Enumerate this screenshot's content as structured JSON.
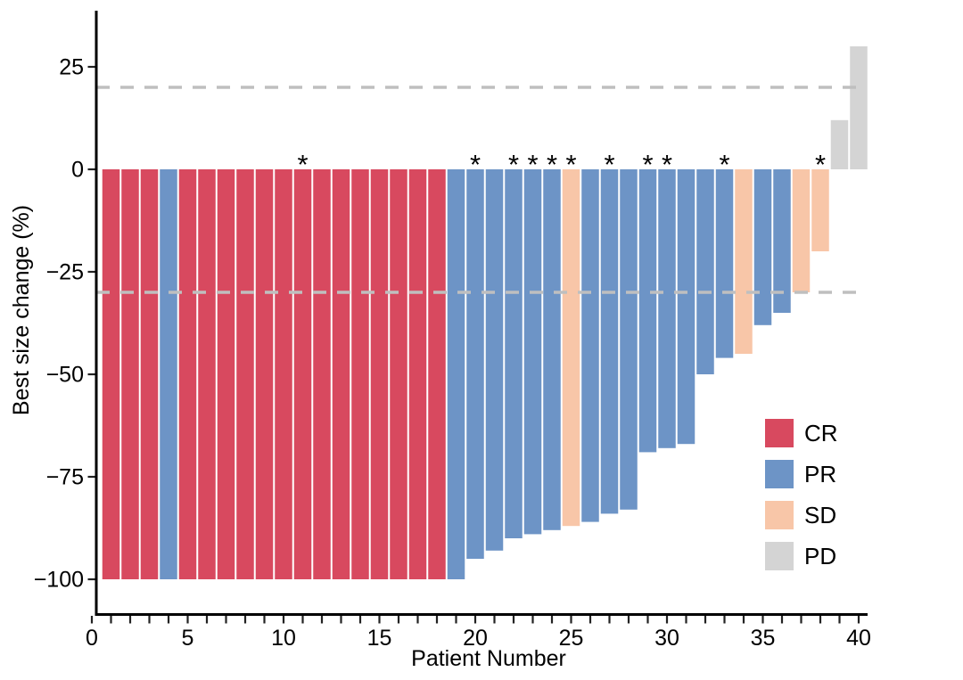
{
  "figure": {
    "background": "#ffffff"
  },
  "chart_data": {
    "type": "bar",
    "subtype": "waterfall",
    "title": "",
    "xlabel": "Patient Number",
    "ylabel": "Best size change (%)",
    "x_tick_values": [
      0,
      5,
      10,
      15,
      20,
      25,
      30,
      35,
      40
    ],
    "x_tick_labels": [
      "0",
      "5",
      "10",
      "15",
      "20",
      "25",
      "30",
      "35",
      "40"
    ],
    "x_minor_ticks_every": 1,
    "x_axis_range": [
      0,
      40
    ],
    "y_tick_values": [
      25,
      0,
      -25,
      -50,
      -75,
      -100
    ],
    "y_tick_labels": [
      "25",
      "0",
      "−25",
      "−50",
      "−75",
      "−100"
    ],
    "ylim": [
      -100,
      30
    ],
    "grid": false,
    "reference_lines": {
      "values": [
        20,
        -30
      ],
      "style": "dashed",
      "color": "#bfbfbf"
    },
    "annotation_marker": "*",
    "legend": {
      "position": "inside-right",
      "entries": [
        {
          "label": "CR",
          "color": "#d8495f"
        },
        {
          "label": "PR",
          "color": "#6d94c6"
        },
        {
          "label": "SD",
          "color": "#f8c6a8"
        },
        {
          "label": "PD",
          "color": "#d4d4d4"
        }
      ]
    },
    "patients": [
      {
        "n": 1,
        "change": -100,
        "response": "CR",
        "starred": false
      },
      {
        "n": 2,
        "change": -100,
        "response": "CR",
        "starred": false
      },
      {
        "n": 3,
        "change": -100,
        "response": "CR",
        "starred": false
      },
      {
        "n": 4,
        "change": -100,
        "response": "PR",
        "starred": false
      },
      {
        "n": 5,
        "change": -100,
        "response": "CR",
        "starred": false
      },
      {
        "n": 6,
        "change": -100,
        "response": "CR",
        "starred": false
      },
      {
        "n": 7,
        "change": -100,
        "response": "CR",
        "starred": false
      },
      {
        "n": 8,
        "change": -100,
        "response": "CR",
        "starred": false
      },
      {
        "n": 9,
        "change": -100,
        "response": "CR",
        "starred": false
      },
      {
        "n": 10,
        "change": -100,
        "response": "CR",
        "starred": false
      },
      {
        "n": 11,
        "change": -100,
        "response": "CR",
        "starred": true
      },
      {
        "n": 12,
        "change": -100,
        "response": "CR",
        "starred": false
      },
      {
        "n": 13,
        "change": -100,
        "response": "CR",
        "starred": false
      },
      {
        "n": 14,
        "change": -100,
        "response": "CR",
        "starred": false
      },
      {
        "n": 15,
        "change": -100,
        "response": "CR",
        "starred": false
      },
      {
        "n": 16,
        "change": -100,
        "response": "CR",
        "starred": false
      },
      {
        "n": 17,
        "change": -100,
        "response": "CR",
        "starred": false
      },
      {
        "n": 18,
        "change": -100,
        "response": "CR",
        "starred": false
      },
      {
        "n": 19,
        "change": -100,
        "response": "PR",
        "starred": false
      },
      {
        "n": 20,
        "change": -95,
        "response": "PR",
        "starred": true
      },
      {
        "n": 21,
        "change": -93,
        "response": "PR",
        "starred": false
      },
      {
        "n": 22,
        "change": -90,
        "response": "PR",
        "starred": true
      },
      {
        "n": 23,
        "change": -89,
        "response": "PR",
        "starred": true
      },
      {
        "n": 24,
        "change": -88,
        "response": "PR",
        "starred": true
      },
      {
        "n": 25,
        "change": -87,
        "response": "SD",
        "starred": true
      },
      {
        "n": 26,
        "change": -86,
        "response": "PR",
        "starred": false
      },
      {
        "n": 27,
        "change": -84,
        "response": "PR",
        "starred": true
      },
      {
        "n": 28,
        "change": -83,
        "response": "PR",
        "starred": false
      },
      {
        "n": 29,
        "change": -69,
        "response": "PR",
        "starred": true
      },
      {
        "n": 30,
        "change": -68,
        "response": "PR",
        "starred": true
      },
      {
        "n": 31,
        "change": -67,
        "response": "PR",
        "starred": false
      },
      {
        "n": 32,
        "change": -50,
        "response": "PR",
        "starred": false
      },
      {
        "n": 33,
        "change": -46,
        "response": "PR",
        "starred": true
      },
      {
        "n": 34,
        "change": -45,
        "response": "SD",
        "starred": false
      },
      {
        "n": 35,
        "change": -38,
        "response": "PR",
        "starred": false
      },
      {
        "n": 36,
        "change": -35,
        "response": "PR",
        "starred": false
      },
      {
        "n": 37,
        "change": -30,
        "response": "SD",
        "starred": false
      },
      {
        "n": 38,
        "change": -20,
        "response": "SD",
        "starred": true
      },
      {
        "n": 39,
        "change": 12,
        "response": "PD",
        "starred": false
      },
      {
        "n": 40,
        "change": 30,
        "response": "PD",
        "starred": false
      }
    ]
  }
}
